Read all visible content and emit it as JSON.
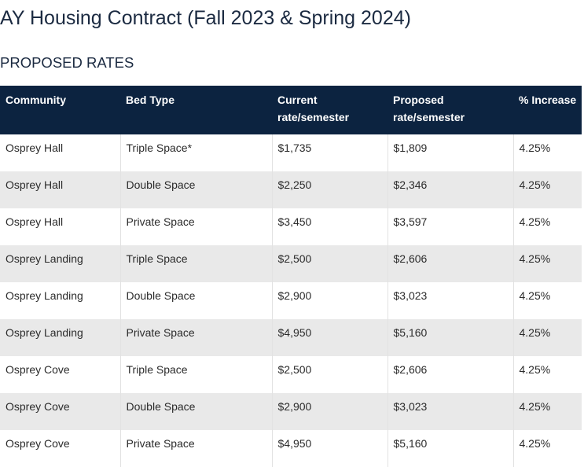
{
  "page": {
    "title": "AY Housing Contract (Fall 2023 & Spring 2024)",
    "section_title": "PROPOSED RATES"
  },
  "table": {
    "headers": [
      [
        "Community"
      ],
      [
        "Bed Type"
      ],
      [
        "Current",
        "rate/semester"
      ],
      [
        "Proposed",
        "rate/semester"
      ],
      [
        "% Increase"
      ]
    ],
    "rows": [
      {
        "community": "Osprey Hall",
        "bed_type": "Triple Space*",
        "current": "$1,735",
        "proposed": "$1,809",
        "increase": "4.25%"
      },
      {
        "community": "Osprey Hall",
        "bed_type": "Double Space",
        "current": "$2,250",
        "proposed": "$2,346",
        "increase": "4.25%"
      },
      {
        "community": "Osprey Hall",
        "bed_type": "Private Space",
        "current": "$3,450",
        "proposed": "$3,597",
        "increase": "4.25%"
      },
      {
        "community": "Osprey Landing",
        "bed_type": "Triple Space",
        "current": "$2,500",
        "proposed": "$2,606",
        "increase": "4.25%"
      },
      {
        "community": "Osprey Landing",
        "bed_type": "Double Space",
        "current": "$2,900",
        "proposed": "$3,023",
        "increase": "4.25%"
      },
      {
        "community": "Osprey Landing",
        "bed_type": "Private Space",
        "current": "$4,950",
        "proposed": "$5,160",
        "increase": "4.25%"
      },
      {
        "community": "Osprey Cove",
        "bed_type": "Triple Space",
        "current": "$2,500",
        "proposed": "$2,606",
        "increase": "4.25%"
      },
      {
        "community": "Osprey Cove",
        "bed_type": "Double Space",
        "current": "$2,900",
        "proposed": "$3,023",
        "increase": "4.25%"
      },
      {
        "community": "Osprey Cove",
        "bed_type": "Private Space",
        "current": "$4,950",
        "proposed": "$5,160",
        "increase": "4.25%"
      }
    ]
  },
  "colors": {
    "header_background": "#0c2340",
    "header_text": "#ffffff",
    "row_alt_background": "#e9e9e9",
    "title_text": "#1b2a41"
  }
}
